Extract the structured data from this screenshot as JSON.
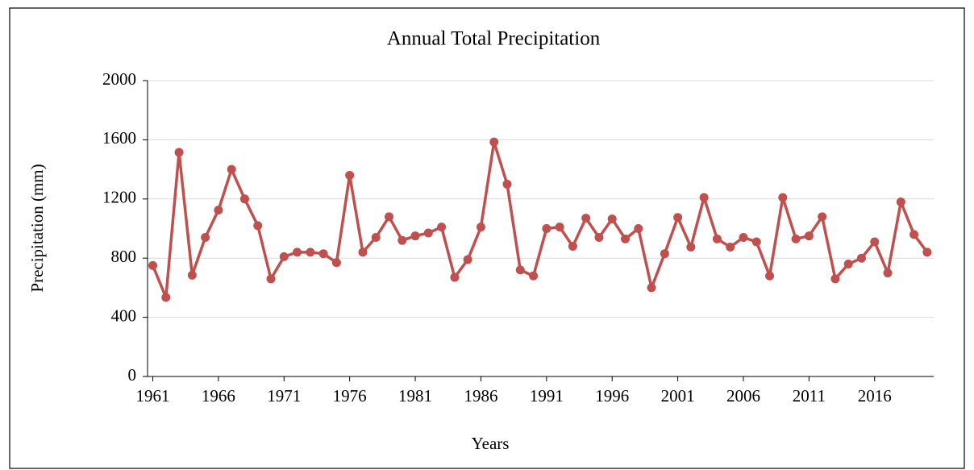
{
  "chart_data": {
    "type": "line",
    "title": "Annual  Total Precipitation",
    "x_label": "Years",
    "y_label": "Precipitation (mm)",
    "x": [
      1961,
      1962,
      1963,
      1964,
      1965,
      1966,
      1967,
      1968,
      1969,
      1970,
      1971,
      1972,
      1973,
      1974,
      1975,
      1976,
      1977,
      1978,
      1979,
      1980,
      1981,
      1982,
      1983,
      1984,
      1985,
      1986,
      1987,
      1988,
      1989,
      1990,
      1991,
      1992,
      1993,
      1994,
      1995,
      1996,
      1997,
      1998,
      1999,
      2000,
      2001,
      2002,
      2003,
      2004,
      2005,
      2006,
      2007,
      2008,
      2009,
      2010,
      2011,
      2012,
      2013,
      2014,
      2015,
      2016,
      2017,
      2018,
      2019,
      2020
    ],
    "series": [
      {
        "name": "Precipitation",
        "color": "#c0504d",
        "values": [
          750,
          535,
          1515,
          685,
          940,
          1125,
          1400,
          1200,
          1020,
          660,
          810,
          840,
          840,
          830,
          770,
          1360,
          840,
          940,
          1080,
          920,
          950,
          970,
          1010,
          670,
          790,
          1010,
          1585,
          1300,
          720,
          680,
          1000,
          1010,
          880,
          1070,
          940,
          1065,
          930,
          1000,
          600,
          830,
          1075,
          875,
          1210,
          930,
          875,
          940,
          910,
          680,
          1210,
          930,
          950,
          1080,
          660,
          760,
          800,
          910,
          700,
          1180,
          960,
          840
        ]
      }
    ],
    "xlim": [
      1960.6,
      2020.5
    ],
    "xticks": [
      1961,
      1966,
      1971,
      1976,
      1981,
      1986,
      1991,
      1996,
      2001,
      2006,
      2011,
      2016
    ],
    "ylim": [
      0,
      2000
    ],
    "yticks": [
      0,
      400,
      800,
      1200,
      1600,
      2000
    ],
    "grid": true
  }
}
